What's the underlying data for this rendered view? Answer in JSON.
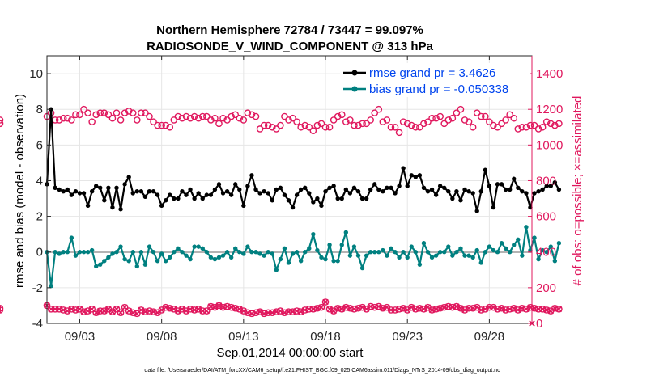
{
  "chart_data": {
    "type": "line",
    "title": "Northern Hemisphere 72784 / 73447 = 99.097%",
    "subtitle": "RADIOSONDE_V_WIND_COMPONENT @ 313 hPa",
    "xlabel": "Sep.01,2014 00:00:00 start",
    "ylabel_left": "rmse and bias (model - observation)",
    "ylabel_right": "# of obs: o=possible; ×=assimilated",
    "footnote": "data file: /Users/raeder/DAI/ATM_forcXX/CAM6_setup/f.e21.FHIST_BGC.f09_025.CAM6assim.011/Diags_NTrS_2014-09/obs_diag_output.nc",
    "xlim": [
      1.0,
      30.6
    ],
    "ylim_left": [
      -4,
      11
    ],
    "ylim_right": [
      0,
      1500
    ],
    "x_ticks": [
      3,
      8,
      13,
      18,
      23,
      28
    ],
    "x_tick_labels": [
      "09/03",
      "09/08",
      "09/13",
      "09/18",
      "09/23",
      "09/28"
    ],
    "y_ticks_left": [
      -4,
      -2,
      0,
      2,
      4,
      6,
      8,
      10
    ],
    "y_tick_labels_left": [
      "-4",
      "-2",
      "0",
      "2",
      "4",
      "6",
      "8",
      "10"
    ],
    "y_ticks_right": [
      0,
      200,
      400,
      600,
      800,
      1000,
      1200,
      1400
    ],
    "y_tick_labels_right": [
      "0",
      "200",
      "400",
      "600",
      "800",
      "1000",
      "1200",
      "1400"
    ],
    "grid": true,
    "legend_position": "top-right",
    "colors": {
      "rmse": "#000000",
      "bias": "#008080",
      "obs": "#e0185e",
      "zero_line": "#b3b3b3",
      "legend_text": "#0044ee"
    },
    "x_start": 1.0,
    "x_step": 0.25,
    "series": [
      {
        "name": "rmse grand pr = 3.4626",
        "axis": "left",
        "values": [
          3.8,
          8.0,
          3.6,
          3.5,
          3.4,
          3.5,
          3.2,
          3.4,
          3.3,
          3.3,
          2.6,
          3.4,
          3.7,
          3.6,
          2.9,
          3.6,
          2.5,
          3.6,
          2.4,
          3.8,
          4.2,
          3.3,
          3.4,
          3.4,
          3.1,
          3.4,
          3.4,
          3.2,
          2.6,
          2.9,
          3.2,
          3.0,
          3.0,
          3.4,
          3.2,
          3.5,
          3.0,
          3.3,
          3.0,
          3.2,
          3.2,
          3.5,
          3.8,
          3.3,
          3.4,
          3.2,
          3.8,
          3.5,
          2.6,
          3.7,
          4.3,
          3.5,
          3.3,
          3.4,
          3.3,
          2.9,
          3.5,
          3.6,
          3.2,
          2.9,
          2.5,
          3.2,
          3.5,
          3.6,
          3.3,
          2.8,
          3.0,
          2.6,
          3.4,
          3.6,
          3.7,
          3.0,
          3.0,
          3.5,
          3.3,
          3.6,
          3.4,
          3.0,
          3.0,
          3.5,
          3.8,
          3.5,
          3.4,
          3.6,
          3.6,
          3.3,
          3.7,
          4.7,
          3.7,
          4.3,
          4.2,
          4.3,
          3.6,
          3.4,
          3.5,
          3.2,
          3.7,
          3.6,
          3.4,
          3.0,
          3.4,
          2.9,
          3.5,
          3.4,
          3.3,
          2.3,
          3.4,
          4.6,
          3.7,
          2.5,
          3.8,
          3.8,
          3.5,
          3.5,
          4.1,
          3.6,
          3.4,
          3.3,
          2.5,
          3.3,
          3.4,
          3.5,
          3.7,
          3.7,
          3.9,
          3.5
        ]
      },
      {
        "name": "bias grand pr = -0.050338",
        "axis": "left",
        "values": [
          0.0,
          -1.9,
          0.0,
          -0.1,
          0.0,
          0.0,
          0.8,
          -0.2,
          0.0,
          0.0,
          0.0,
          0.1,
          -0.8,
          -0.7,
          -0.5,
          -0.3,
          -0.1,
          0.0,
          0.3,
          -0.4,
          -0.5,
          0.0,
          -0.8,
          0.0,
          -0.7,
          0.3,
          0.0,
          -0.5,
          -0.1,
          -0.5,
          -0.3,
          0.0,
          0.2,
          0.0,
          -0.2,
          -0.4,
          0.3,
          0.3,
          0.2,
          0.0,
          -0.3,
          -0.4,
          -0.3,
          -0.2,
          0.0,
          -0.3,
          0.2,
          0.0,
          -0.1,
          0.3,
          0.0,
          0.0,
          -0.1,
          -0.2,
          0.0,
          -0.1,
          -1.0,
          -0.4,
          0.2,
          -0.6,
          -0.1,
          0.0,
          -0.5,
          0.0,
          0.2,
          1.0,
          0.1,
          -0.3,
          -0.4,
          0.4,
          -0.5,
          -0.5,
          0.4,
          1.1,
          -0.2,
          0.3,
          -0.2,
          -0.9,
          -0.2,
          0.0,
          0.0,
          0.0,
          0.1,
          -0.2,
          0.2,
          0.0,
          -0.3,
          0.0,
          -0.3,
          0.3,
          0.0,
          -0.7,
          0.5,
          0.0,
          -0.3,
          -0.2,
          0.0,
          0.0,
          0.3,
          -0.2,
          0.0,
          0.2,
          -0.2,
          -0.2,
          -0.3,
          0.1,
          -0.6,
          0.0,
          0.3,
          0.1,
          0.0,
          0.5,
          0.2,
          0.0,
          0.4,
          0.7,
          -0.2,
          1.4,
          0.1,
          0.8,
          -0.4,
          0.1,
          0.0,
          0.3,
          -0.5,
          0.5
        ]
      },
      {
        "name": "possible",
        "axis": "right",
        "marker": "o",
        "values": [
          1160,
          1180,
          1140,
          1140,
          1150,
          1150,
          1140,
          1170,
          1170,
          1200,
          1180,
          1130,
          1170,
          1180,
          1180,
          1170,
          1150,
          1180,
          1140,
          1180,
          1190,
          1180,
          1140,
          1180,
          1180,
          1160,
          1130,
          1110,
          1110,
          1110,
          1100,
          1140,
          1160,
          1150,
          1160,
          1150,
          1160,
          1150,
          1160,
          1160,
          1140,
          1150,
          1120,
          1150,
          1140,
          1160,
          1170,
          1150,
          1140,
          1180,
          1170,
          1160,
          1090,
          1110,
          1110,
          1100,
          1090,
          1110,
          1160,
          1140,
          1150,
          1130,
          1100,
          1110,
          1100,
          1080,
          1110,
          1120,
          1100,
          1100,
          1140,
          1160,
          1170,
          1130,
          1140,
          1110,
          1110,
          1120,
          1120,
          1140,
          1180,
          1200,
          1130,
          1140,
          1100,
          1100,
          1070,
          1130,
          1120,
          1110,
          1100,
          1100,
          1120,
          1130,
          1150,
          1150,
          1160,
          1120,
          1140,
          1150,
          1180,
          1200,
          1140,
          1130,
          1100,
          1180,
          1160,
          1160,
          1130,
          1110,
          1100,
          1120,
          1140,
          1170,
          1150,
          1090,
          1100,
          1100,
          1110,
          1110,
          1090,
          1100,
          1130,
          1120,
          1110,
          1120,
          1120,
          1140
        ]
      },
      {
        "name": "assimilated",
        "axis": "right",
        "marker": "x",
        "values": [
          100,
          80,
          80,
          80,
          75,
          70,
          80,
          75,
          80,
          65,
          70,
          80,
          60,
          70,
          70,
          80,
          65,
          80,
          60,
          90,
          70,
          60,
          55,
          75,
          65,
          70,
          65,
          60,
          75,
          90,
          85,
          80,
          70,
          80,
          70,
          80,
          75,
          80,
          70,
          70,
          95,
          90,
          100,
          90,
          95,
          90,
          85,
          80,
          70,
          60,
          55,
          60,
          65,
          55,
          60,
          60,
          65,
          70,
          60,
          65,
          65,
          70,
          65,
          75,
          80,
          80,
          85,
          90,
          120,
          80,
          70,
          85,
          80,
          90,
          85,
          80,
          85,
          90,
          80,
          95,
          90,
          95,
          85,
          90,
          75,
          75,
          80,
          85,
          75,
          90,
          80,
          85,
          80,
          90,
          75,
          80,
          85,
          90,
          95,
          90,
          95,
          85,
          75,
          85,
          85,
          90,
          75,
          80,
          90,
          90,
          80,
          85,
          75,
          80,
          85,
          75,
          85,
          80,
          90,
          85,
          80,
          80,
          75,
          70,
          85,
          80,
          75,
          85
        ]
      }
    ]
  }
}
